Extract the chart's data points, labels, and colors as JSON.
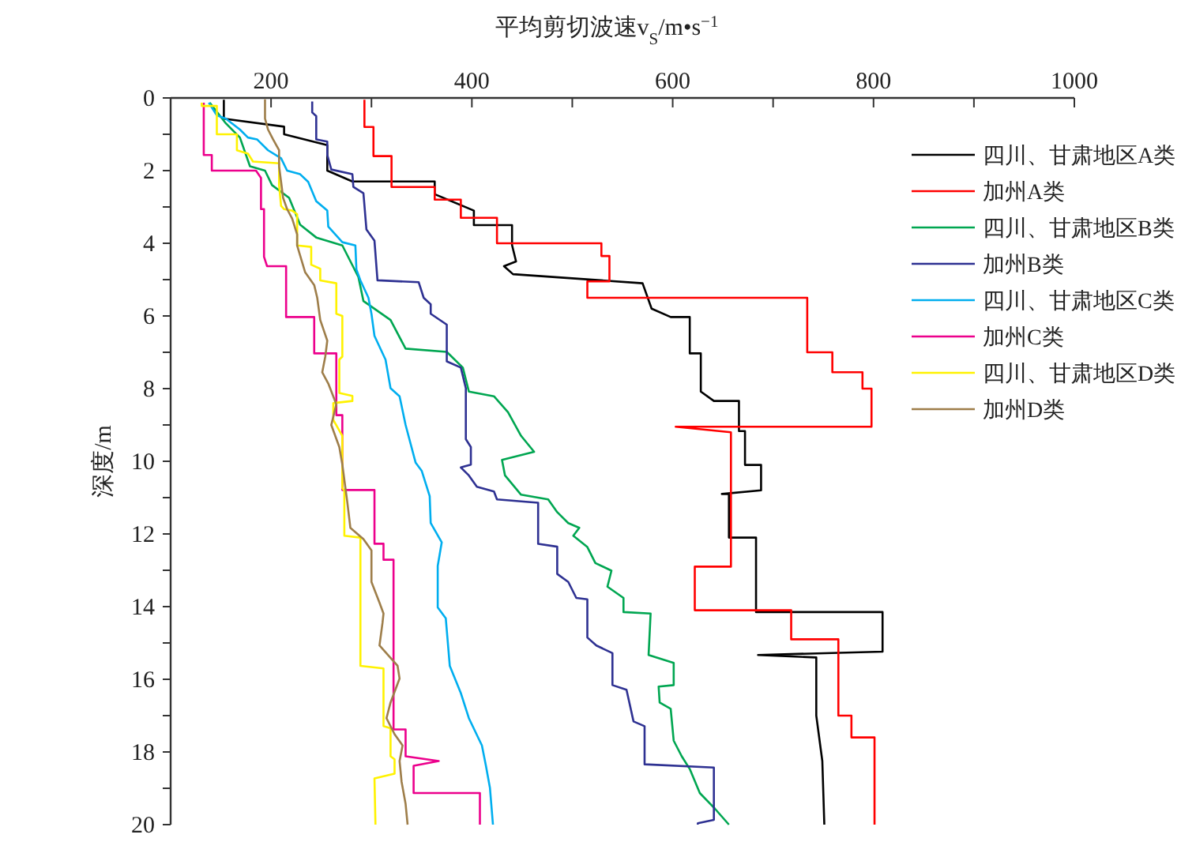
{
  "chart_data": {
    "type": "line",
    "xlabel": "平均剪切波速v$_{S}$/m•s$^{−1}$",
    "ylabel": "深度/m",
    "xlim": [
      100,
      1000
    ],
    "xticks": [
      {
        "value": 100,
        "label": null
      },
      200,
      {
        "value": 300,
        "label": null
      },
      400,
      {
        "value": 500,
        "label": null
      },
      600,
      {
        "value": 700,
        "label": null
      },
      800,
      {
        "value": 900,
        "label": null
      },
      1000
    ],
    "ylim": [
      20,
      0
    ],
    "yticks": [
      0,
      {
        "value": 1,
        "label": null
      },
      2,
      {
        "value": 3,
        "label": null
      },
      4,
      {
        "value": 5,
        "label": null
      },
      6,
      {
        "value": 7,
        "label": null
      },
      8,
      {
        "value": 9,
        "label": null
      },
      10,
      {
        "value": 11,
        "label": null
      },
      12,
      {
        "value": 13,
        "label": null
      },
      14,
      {
        "value": 15,
        "label": null
      },
      16,
      {
        "value": 17,
        "label": null
      },
      18,
      {
        "value": 19,
        "label": null
      },
      20
    ],
    "legend": "top right",
    "series": [
      {
        "name": "四川、甘肃地区A类",
        "color": "#000000",
        "x": [
          153,
          153,
          213,
          213,
          256,
          256,
          281,
          363,
          363,
          402,
          402,
          440,
          440,
          444,
          432,
          441,
          570,
          579,
          598,
          617,
          617,
          628,
          628,
          641,
          666,
          666,
          672,
          672,
          688,
          688,
          649,
          656,
          656,
          683,
          683,
          809,
          809,
          685,
          743,
          743,
          749,
          751
        ],
        "values": [
          0.05,
          0.57,
          0.79,
          1.0,
          1.3,
          2.0,
          2.3,
          2.3,
          2.65,
          3.1,
          3.5,
          3.5,
          4.05,
          4.5,
          4.63,
          4.85,
          5.1,
          5.8,
          6.03,
          6.03,
          7.03,
          7.03,
          8.08,
          8.34,
          8.34,
          9.17,
          9.17,
          10.1,
          10.1,
          10.8,
          10.9,
          10.9,
          12.1,
          12.1,
          14.15,
          14.15,
          15.24,
          15.33,
          15.4,
          17,
          18.25,
          20
        ]
      },
      {
        "name": "加州A类",
        "color": "#ff0000",
        "x": [
          293,
          293,
          302,
          302,
          320,
          320,
          363,
          363,
          389,
          389,
          425,
          425,
          529,
          529,
          537,
          537,
          515,
          515,
          734,
          734,
          759,
          759,
          789,
          789,
          798,
          798,
          603,
          658,
          658,
          622,
          622,
          718,
          718,
          765,
          765,
          778,
          778,
          801,
          801
        ],
        "values": [
          0.05,
          0.8,
          0.8,
          1.6,
          1.6,
          2.45,
          2.45,
          2.8,
          2.8,
          3.3,
          3.3,
          4.0,
          4.0,
          4.35,
          4.35,
          5.05,
          5.05,
          5.5,
          5.5,
          7.0,
          7.0,
          7.55,
          7.55,
          8.0,
          8.0,
          9.05,
          9.05,
          9.2,
          12.9,
          12.9,
          14.1,
          14.1,
          14.9,
          14.9,
          17.0,
          17.0,
          17.6,
          17.6,
          20
        ]
      },
      {
        "name": "四川、甘肃地区B类",
        "color": "#00a651",
        "x": [
          139,
          155,
          169,
          179,
          194,
          201,
          218,
          229,
          245,
          271,
          287,
          292,
          319,
          334,
          375,
          391,
          397,
          422,
          436,
          449,
          462,
          430,
          433,
          449,
          476,
          485,
          496,
          507,
          501,
          515,
          523,
          539,
          535,
          551,
          551,
          578,
          576,
          601,
          601,
          586,
          587,
          598,
          601,
          609,
          617,
          627,
          642,
          656
        ],
        "values": [
          0.13,
          0.7,
          1.09,
          1.88,
          2.0,
          2.4,
          2.75,
          3.49,
          3.84,
          4.06,
          4.93,
          5.59,
          6.11,
          6.9,
          6.99,
          7.42,
          8.08,
          8.21,
          8.65,
          9.3,
          9.74,
          9.96,
          10.39,
          10.92,
          11.05,
          11.4,
          11.7,
          11.83,
          12.05,
          12.36,
          12.8,
          13.01,
          13.45,
          13.76,
          14.15,
          14.19,
          15.33,
          15.55,
          16.16,
          16.2,
          16.64,
          16.81,
          17.69,
          18.12,
          18.47,
          19.13,
          19.56,
          20
        ]
      },
      {
        "name": "加州B类",
        "color": "#2e3192",
        "x": [
          241,
          241,
          245,
          245,
          256,
          256,
          260,
          281,
          282,
          292,
          295,
          303,
          306,
          347,
          352,
          359,
          359,
          375,
          375,
          389,
          394,
          394,
          399,
          399,
          389,
          397,
          405,
          422,
          425,
          466,
          466,
          485,
          485,
          496,
          504,
          515,
          515,
          524,
          540,
          540,
          554,
          561,
          572,
          572,
          641,
          641,
          625,
          625
        ],
        "values": [
          0.1,
          0.4,
          0.5,
          1.14,
          1.2,
          1.57,
          1.97,
          2.1,
          2.45,
          2.62,
          3.62,
          3.93,
          5.02,
          5.07,
          5.5,
          5.68,
          5.94,
          6.24,
          7.25,
          7.42,
          7.99,
          9.39,
          9.61,
          10.09,
          10.17,
          10.39,
          10.7,
          10.83,
          11.05,
          11.14,
          12.27,
          12.35,
          13.1,
          13.32,
          13.76,
          13.8,
          14.85,
          15.07,
          15.28,
          16.16,
          16.29,
          17.16,
          17.29,
          18.34,
          18.43,
          19.87,
          19.96,
          20
        ]
      },
      {
        "name": "四川、甘肃地区C类",
        "color": "#00aeef",
        "x": [
          138,
          146,
          155,
          169,
          177,
          186,
          197,
          210,
          216,
          229,
          237,
          245,
          256,
          257,
          271,
          284,
          285,
          289,
          297,
          300,
          303,
          314,
          319,
          328,
          334,
          344,
          350,
          358,
          359,
          370,
          366,
          366,
          374,
          378,
          389,
          397,
          410,
          414,
          418,
          421
        ],
        "values": [
          0.13,
          0.48,
          0.57,
          0.87,
          1.09,
          1.14,
          1.44,
          1.66,
          2.0,
          2.1,
          2.31,
          2.84,
          3.1,
          3.54,
          3.97,
          4.06,
          4.72,
          5.02,
          5.5,
          5.94,
          6.55,
          7.2,
          7.99,
          8.21,
          9.0,
          10.04,
          10.26,
          10.96,
          11.7,
          12.23,
          12.88,
          14.02,
          14.32,
          15.63,
          16.38,
          17.07,
          17.82,
          18.38,
          18.99,
          20
        ]
      },
      {
        "name": "加州C类",
        "color": "#ec008c",
        "x": [
          133,
          133,
          141,
          141,
          185,
          190,
          190,
          193,
          193,
          196,
          215,
          215,
          243,
          243,
          265,
          265,
          271,
          271,
          303,
          303,
          312,
          312,
          322,
          322,
          334,
          334,
          367,
          342,
          342,
          408,
          408
        ],
        "values": [
          0.13,
          1.57,
          1.57,
          2.0,
          2.0,
          2.2,
          3.06,
          3.06,
          4.37,
          4.63,
          4.63,
          6.03,
          6.03,
          7.03,
          7.03,
          8.73,
          8.73,
          10.79,
          10.79,
          12.27,
          12.27,
          12.71,
          12.71,
          17.38,
          17.38,
          18.12,
          18.25,
          18.38,
          19.13,
          19.13,
          20
        ]
      },
      {
        "name": "四川、甘肃地区D类",
        "color": "#fff200",
        "x": [
          131,
          131,
          146,
          146,
          166,
          166,
          177,
          182,
          208,
          208,
          210,
          213,
          221,
          226,
          226,
          240,
          240,
          249,
          249,
          265,
          265,
          271,
          271,
          268,
          268,
          281,
          281,
          262,
          262,
          271,
          271,
          273,
          273,
          289,
          289,
          312,
          312,
          319,
          319,
          323,
          323,
          303,
          304
        ],
        "values": [
          0.13,
          0.22,
          0.22,
          1.0,
          1.0,
          1.44,
          1.53,
          1.75,
          1.8,
          2.4,
          2.97,
          3.06,
          3.1,
          3.2,
          4.06,
          4.1,
          4.59,
          4.7,
          5.02,
          5.1,
          5.94,
          6.0,
          7.12,
          7.2,
          8.12,
          8.2,
          8.34,
          8.4,
          8.86,
          9.3,
          10.74,
          10.8,
          12.05,
          12.1,
          15.63,
          15.7,
          17.29,
          17.35,
          18.12,
          18.2,
          18.6,
          18.73,
          20
        ]
      },
      {
        "name": "加州D类",
        "color": "#9e7e4a",
        "x": [
          194,
          194,
          197,
          202,
          208,
          208,
          210,
          212,
          216,
          221,
          226,
          226,
          234,
          243,
          246,
          249,
          256,
          254,
          251,
          257,
          265,
          260,
          268,
          271,
          276,
          279,
          292,
          300,
          300,
          308,
          312,
          311,
          308,
          319,
          326,
          328,
          319,
          315,
          323,
          331,
          328,
          330,
          334,
          336
        ],
        "values": [
          0.04,
          0.57,
          0.87,
          1.14,
          1.44,
          1.88,
          2.31,
          2.75,
          3.06,
          3.32,
          3.76,
          4.06,
          4.8,
          5.15,
          5.5,
          6.11,
          6.68,
          7.12,
          7.55,
          7.86,
          8.43,
          9.0,
          9.61,
          10.09,
          11.14,
          11.83,
          12.14,
          12.45,
          13.32,
          13.89,
          14.19,
          14.45,
          15.07,
          15.41,
          15.63,
          15.98,
          16.64,
          17.07,
          17.51,
          17.82,
          18.25,
          18.82,
          19.43,
          20
        ]
      }
    ]
  }
}
